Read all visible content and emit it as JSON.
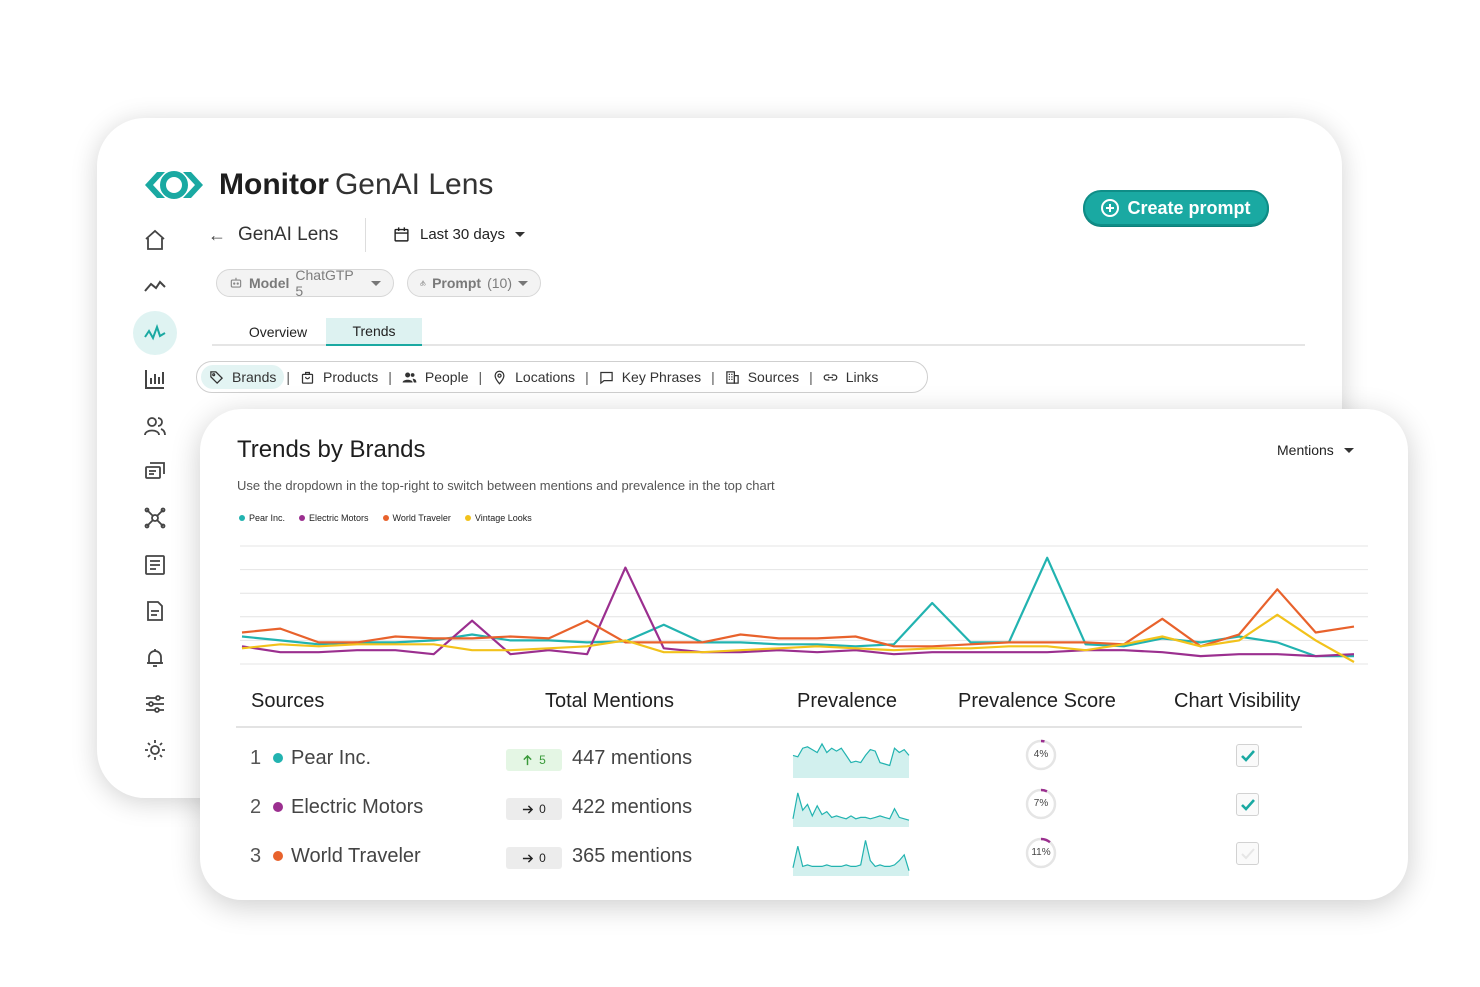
{
  "header": {
    "brand_bold": "Monitor",
    "brand_light": "GenAI Lens",
    "create_prompt": "Create prompt"
  },
  "breadcrumb": {
    "title": "GenAI Lens"
  },
  "date_filter": {
    "label": "Last 30 days"
  },
  "pills": [
    {
      "label_bold": "Model",
      "label": "ChatGTP 5"
    },
    {
      "label_bold": "Prompt",
      "label": "(10)"
    }
  ],
  "tabs": [
    {
      "label": "Overview"
    },
    {
      "label": "Trends",
      "active": true
    }
  ],
  "filters": [
    {
      "label": "Brands",
      "icon": "tag-icon",
      "active": true
    },
    {
      "label": "Products",
      "icon": "bag-icon"
    },
    {
      "label": "People",
      "icon": "people-icon"
    },
    {
      "label": "Locations",
      "icon": "pin-icon"
    },
    {
      "label": "Key Phrases",
      "icon": "chat-icon"
    },
    {
      "label": "Sources",
      "icon": "building-icon"
    },
    {
      "label": "Links",
      "icon": "link-icon"
    }
  ],
  "sidebar": [
    "home-icon",
    "trend-icon",
    "pulse-icon",
    "bar-chart-icon",
    "users-icon",
    "messages-icon",
    "network-icon",
    "list-icon",
    "document-icon",
    "bell-icon",
    "sliders-icon",
    "settings-icon"
  ],
  "panel": {
    "title": "Trends by Brands",
    "subtitle": "Use the dropdown in the top-right to switch between mentions and prevalence in the top chart",
    "dropdown": "Mentions"
  },
  "colors": {
    "accent": "#1aa9a2",
    "pear": "#22b3b0",
    "electric": "#9b2f8f",
    "world": "#e8622c",
    "vintage": "#f2c21b"
  },
  "chart_data": {
    "type": "line",
    "title": "",
    "series": [
      {
        "name": "Pear Inc.",
        "color": "#22b3b0",
        "values": [
          28,
          24,
          20,
          22,
          22,
          24,
          30,
          24,
          24,
          22,
          23,
          40,
          22,
          22,
          20,
          20,
          18,
          20,
          62,
          22,
          22,
          108,
          20,
          18,
          26,
          22,
          28,
          22,
          8,
          8
        ]
      },
      {
        "name": "Electric Motors",
        "color": "#9b2f8f",
        "values": [
          18,
          12,
          12,
          14,
          14,
          10,
          44,
          10,
          14,
          10,
          98,
          16,
          12,
          12,
          14,
          12,
          14,
          10,
          12,
          12,
          12,
          12,
          14,
          14,
          12,
          8,
          10,
          10,
          8,
          10
        ]
      },
      {
        "name": "World Traveler",
        "color": "#e8622c",
        "values": [
          32,
          36,
          22,
          22,
          28,
          26,
          26,
          28,
          26,
          44,
          22,
          22,
          22,
          30,
          26,
          26,
          28,
          18,
          18,
          20,
          22,
          22,
          22,
          20,
          46,
          18,
          30,
          76,
          32,
          38
        ]
      },
      {
        "name": "Vintage Looks",
        "color": "#f2c21b",
        "values": [
          16,
          20,
          18,
          20,
          20,
          20,
          14,
          14,
          16,
          18,
          24,
          12,
          12,
          14,
          16,
          18,
          16,
          14,
          16,
          16,
          18,
          18,
          14,
          20,
          28,
          18,
          24,
          50,
          24,
          2
        ]
      }
    ],
    "ylim": [
      0,
      120
    ]
  },
  "table": {
    "headers": [
      "Sources",
      "Total Mentions",
      "Prevalence",
      "Prevalence Score",
      "Chart Visibility"
    ],
    "rows": [
      {
        "rank": "1",
        "name": "Pear Inc.",
        "color": "#22b3b0",
        "change_icon": "arrow-up-icon",
        "change": "5",
        "change_type": "up",
        "mentions": "447 mentions",
        "score": "4%",
        "score_value": 4,
        "visible": true,
        "spark": [
          30,
          28,
          40,
          42,
          38,
          34,
          46,
          34,
          40,
          36,
          40,
          30,
          20,
          22,
          20,
          30,
          38,
          36,
          20,
          18,
          16,
          40,
          34,
          38,
          30
        ]
      },
      {
        "rank": "2",
        "name": "Electric Motors",
        "color": "#9b2f8f",
        "change_icon": "arrow-right-icon",
        "change": "0",
        "change_type": "flat",
        "mentions": "422 mentions",
        "score": "7%",
        "score_value": 7,
        "visible": true,
        "spark": [
          10,
          46,
          22,
          30,
          14,
          28,
          16,
          20,
          12,
          14,
          12,
          10,
          14,
          10,
          12,
          12,
          10,
          12,
          14,
          12,
          10,
          24,
          12,
          10,
          8
        ]
      },
      {
        "rank": "3",
        "name": "World Traveler",
        "color": "#e8622c",
        "change_icon": "arrow-right-icon",
        "change": "0",
        "change_type": "flat",
        "mentions": "365 mentions",
        "score": "11%",
        "score_value": 11,
        "visible": false,
        "spark": [
          10,
          40,
          12,
          14,
          12,
          12,
          12,
          14,
          12,
          12,
          12,
          14,
          12,
          12,
          14,
          48,
          20,
          12,
          14,
          12,
          12,
          14,
          20,
          28,
          6
        ]
      }
    ]
  }
}
